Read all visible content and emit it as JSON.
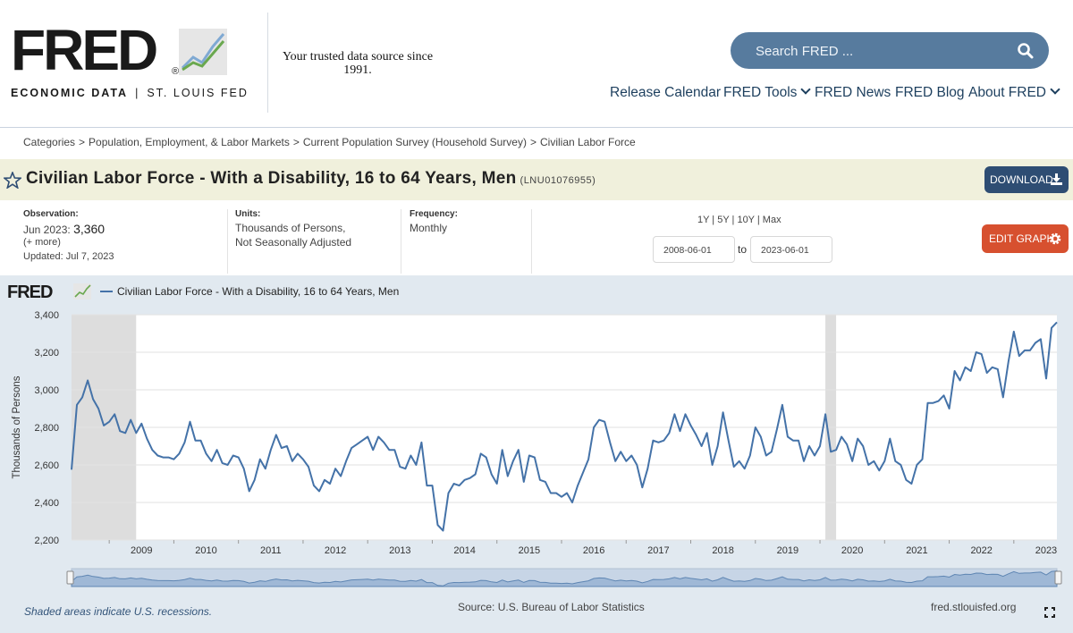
{
  "header": {
    "logo_text": "FRED",
    "logo_tagline_left": "ECONOMIC DATA",
    "logo_tagline_right": "ST. LOUIS FED",
    "trusted": "Your trusted data source since 1991.",
    "search_placeholder": "Search FRED ...",
    "nav": [
      {
        "label": "Release Calendar",
        "dropdown": false
      },
      {
        "label": "FRED Tools",
        "dropdown": true
      },
      {
        "label": "FRED News",
        "dropdown": false
      },
      {
        "label": "FRED Blog",
        "dropdown": false
      },
      {
        "label": "About FRED",
        "dropdown": true
      }
    ]
  },
  "breadcrumb": [
    "Categories",
    "Population, Employment, & Labor Markets",
    "Current Population Survey (Household Survey)",
    "Civilian Labor Force"
  ],
  "series": {
    "title": "Civilian Labor Force - With a Disability, 16 to 64 Years, Men",
    "id": "(LNU01076955)",
    "download_label": "DOWNLOAD"
  },
  "meta": {
    "observation_label": "Observation:",
    "observation_date": "Jun 2023:",
    "observation_value": "3,360",
    "more": "(+ more)",
    "updated": "Updated: Jul 7, 2023",
    "units_label": "Units:",
    "units_line1": "Thousands of Persons,",
    "units_line2": "Not Seasonally Adjusted",
    "frequency_label": "Frequency:",
    "frequency": "Monthly",
    "ranges": "1Y | 5Y | 10Y | Max",
    "date_from": "2008-06-01",
    "date_to_label": "to",
    "date_to": "2023-06-01",
    "edit_graph_label": "EDIT GRAPH"
  },
  "colors": {
    "series_line": "#4472a8",
    "recession": "#dddddd",
    "accent_download": "#2e4d73",
    "accent_edit": "#d7502f"
  },
  "chart_data": {
    "type": "line",
    "legend": "Civilian Labor Force - With a Disability, 16 to 64 Years, Men",
    "ylabel": "Thousands of Persons",
    "ylim": [
      2200,
      3400
    ],
    "yticks": [
      2200,
      2400,
      2600,
      2800,
      3000,
      3200,
      3400
    ],
    "xticks": [
      2009,
      2010,
      2011,
      2012,
      2013,
      2014,
      2015,
      2016,
      2017,
      2018,
      2019,
      2020,
      2021,
      2022,
      2023
    ],
    "x_start": "2008-06",
    "recessions": [
      [
        "2008-06",
        "2009-06"
      ],
      [
        "2020-02",
        "2020-04"
      ]
    ],
    "values": [
      2575,
      2920,
      2960,
      3050,
      2950,
      2900,
      2810,
      2830,
      2870,
      2780,
      2770,
      2840,
      2770,
      2820,
      2740,
      2680,
      2650,
      2640,
      2640,
      2630,
      2660,
      2720,
      2830,
      2730,
      2730,
      2660,
      2620,
      2680,
      2610,
      2600,
      2650,
      2640,
      2580,
      2460,
      2520,
      2630,
      2580,
      2680,
      2760,
      2690,
      2700,
      2620,
      2660,
      2630,
      2590,
      2490,
      2460,
      2520,
      2500,
      2580,
      2540,
      2620,
      2690,
      2710,
      2730,
      2750,
      2680,
      2750,
      2720,
      2680,
      2680,
      2590,
      2580,
      2650,
      2600,
      2720,
      2490,
      2490,
      2280,
      2250,
      2450,
      2500,
      2490,
      2520,
      2530,
      2550,
      2660,
      2640,
      2550,
      2500,
      2680,
      2540,
      2620,
      2680,
      2510,
      2650,
      2640,
      2520,
      2510,
      2450,
      2450,
      2430,
      2450,
      2400,
      2490,
      2560,
      2630,
      2800,
      2840,
      2830,
      2720,
      2620,
      2670,
      2620,
      2650,
      2600,
      2480,
      2580,
      2730,
      2720,
      2730,
      2770,
      2870,
      2780,
      2870,
      2810,
      2760,
      2700,
      2770,
      2600,
      2700,
      2880,
      2730,
      2590,
      2620,
      2580,
      2650,
      2800,
      2750,
      2650,
      2670,
      2790,
      2920,
      2750,
      2730,
      2730,
      2620,
      2700,
      2650,
      2700,
      2870,
      2670,
      2680,
      2750,
      2710,
      2620,
      2740,
      2700,
      2600,
      2620,
      2570,
      2620,
      2740,
      2620,
      2600,
      2520,
      2500,
      2600,
      2630,
      2930,
      2930,
      2940,
      2970,
      2900,
      3100,
      3050,
      3120,
      3100,
      3200,
      3190,
      3090,
      3120,
      3110,
      2960,
      3150,
      3310,
      3180,
      3210,
      3210,
      3250,
      3270,
      3060,
      3330,
      3360
    ]
  },
  "footer": {
    "recession_note": "Shaded areas indicate U.S. recessions.",
    "source": "Source: U.S. Bureau of Labor Statistics",
    "url": "fred.stlouisfed.org"
  }
}
